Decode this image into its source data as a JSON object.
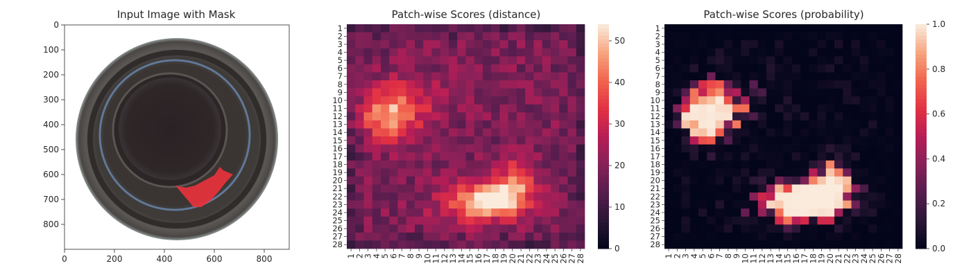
{
  "figure": {
    "panels": [
      {
        "title": "Input Image with Mask"
      },
      {
        "title": "Patch-wise Scores (distance)"
      },
      {
        "title": "Patch-wise Scores (probability)"
      }
    ]
  },
  "chart_data": [
    {
      "type": "image",
      "title": "Input Image with Mask",
      "x_ticks": [
        0,
        200,
        400,
        600,
        800
      ],
      "y_ticks": [
        0,
        100,
        200,
        300,
        400,
        500,
        600,
        700,
        800
      ],
      "xlim": [
        0,
        900
      ],
      "ylim": [
        900,
        0
      ],
      "content": "top view of a glass bottle with a red anomaly mask on the lower-right rim",
      "colors": {
        "mask": "#e8323c",
        "rim": "#4b4846",
        "interior": "#2a2223",
        "glass_edge": "#6d8db8"
      }
    },
    {
      "type": "heatmap",
      "title": "Patch-wise Scores (distance)",
      "grid": [
        28,
        28
      ],
      "x_ticks": [
        "1",
        "2",
        "3",
        "4",
        "5",
        "6",
        "7",
        "8",
        "9",
        "10",
        "11",
        "12",
        "13",
        "14",
        "15",
        "16",
        "17",
        "18",
        "19",
        "20",
        "21",
        "22",
        "23",
        "24",
        "25",
        "26",
        "27",
        "28"
      ],
      "y_ticks": [
        "1",
        "2",
        "3",
        "4",
        "5",
        "6",
        "7",
        "8",
        "9",
        "10",
        "11",
        "12",
        "13",
        "14",
        "15",
        "16",
        "17",
        "18",
        "19",
        "20",
        "21",
        "22",
        "23",
        "24",
        "25",
        "26",
        "27",
        "28"
      ],
      "colorbar": {
        "ticks": [
          0,
          10,
          20,
          30,
          40,
          50
        ],
        "range": [
          0,
          54
        ]
      },
      "colormap": "rocket",
      "baseline": 19,
      "hotspots": [
        {
          "row": 12,
          "col": 5.5,
          "sx": 2.4,
          "sy": 2.2,
          "peak": 26
        },
        {
          "row": 9.5,
          "col": 9,
          "sx": 3.5,
          "sy": 2.0,
          "peak": 8
        },
        {
          "row": 22.5,
          "col": 17.5,
          "sx": 2.3,
          "sy": 1.4,
          "peak": 35
        },
        {
          "row": 20.5,
          "col": 20.5,
          "sx": 1.8,
          "sy": 2.2,
          "peak": 20
        },
        {
          "row": 23,
          "col": 14,
          "sx": 2.8,
          "sy": 2.0,
          "peak": 12
        }
      ]
    },
    {
      "type": "heatmap",
      "title": "Patch-wise Scores (probability)",
      "grid": [
        28,
        28
      ],
      "x_ticks": [
        "1",
        "2",
        "3",
        "4",
        "5",
        "6",
        "7",
        "8",
        "9",
        "10",
        "11",
        "12",
        "13",
        "14",
        "15",
        "16",
        "17",
        "18",
        "19",
        "20",
        "21",
        "22",
        "23",
        "24",
        "25",
        "26",
        "27",
        "28"
      ],
      "y_ticks": [
        "1",
        "2",
        "3",
        "4",
        "5",
        "6",
        "7",
        "8",
        "9",
        "10",
        "11",
        "12",
        "13",
        "14",
        "15",
        "16",
        "17",
        "18",
        "19",
        "20",
        "21",
        "22",
        "23",
        "24",
        "25",
        "26",
        "27",
        "28"
      ],
      "colorbar": {
        "ticks": [
          0.0,
          0.2,
          0.4,
          0.6,
          0.8,
          1.0
        ],
        "labels": [
          "0.0",
          "0.2",
          "0.4",
          "0.6",
          "0.8",
          "1.0"
        ],
        "range": [
          0,
          1
        ]
      },
      "colormap": "rocket",
      "derived_from": "distance",
      "logistic_center": 31,
      "logistic_scale": 2.5
    }
  ]
}
